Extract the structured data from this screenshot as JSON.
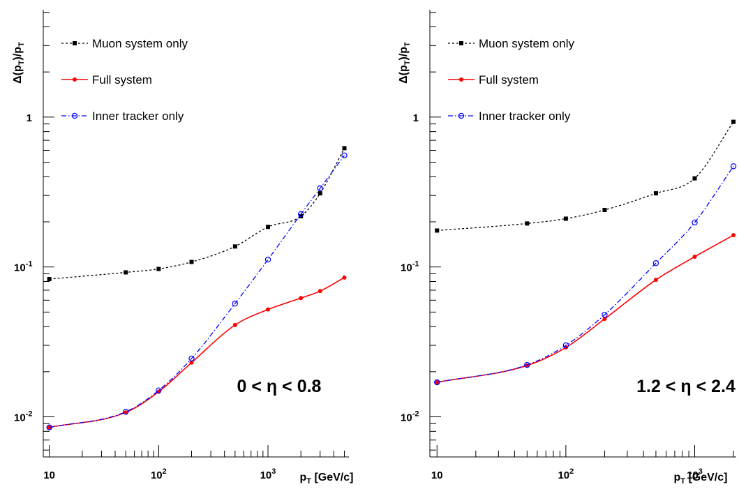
{
  "chart_data": [
    {
      "type": "line",
      "xlabel": "p_T [GeV/c]",
      "ylabel": "Δ(p_T)/p_T",
      "x_scale": "log",
      "y_scale": "log",
      "xlim": [
        8.8,
        5500
      ],
      "ylim": [
        0.0054,
        5.2
      ],
      "grid": false,
      "legend_position": "top-left",
      "annotation": "0 < η < 0.8",
      "x_tick_labels": [
        "10",
        "10^2",
        "10^3"
      ],
      "y_tick_labels": [
        "10^-2",
        "10^-1",
        "1"
      ],
      "series": [
        {
          "name": "Muon system only",
          "color": "#000000",
          "marker": "square",
          "dash": "dotted",
          "x": [
            10,
            50,
            100,
            200,
            500,
            1000,
            2000,
            3000,
            5000
          ],
          "y": [
            0.083,
            0.092,
            0.097,
            0.108,
            0.137,
            0.185,
            0.218,
            0.31,
            0.62
          ]
        },
        {
          "name": "Full system",
          "color": "#ff0000",
          "marker": "dot",
          "dash": "solid",
          "x": [
            10,
            50,
            100,
            200,
            500,
            1000,
            2000,
            3000,
            5000
          ],
          "y": [
            0.0085,
            0.0107,
            0.0147,
            0.023,
            0.041,
            0.052,
            0.062,
            0.069,
            0.085
          ]
        },
        {
          "name": "Inner tracker only",
          "color": "#0000ff",
          "marker": "open-circle",
          "dash": "dashdot",
          "x": [
            10,
            50,
            100,
            200,
            500,
            1000,
            2000,
            3000,
            5000
          ],
          "y": [
            0.0085,
            0.0108,
            0.015,
            0.0245,
            0.057,
            0.112,
            0.225,
            0.335,
            0.555
          ]
        }
      ]
    },
    {
      "type": "line",
      "xlabel": "p_T [GeV/c]",
      "ylabel": "Δ(p_T)/p_T",
      "x_scale": "log",
      "y_scale": "log",
      "xlim": [
        8.8,
        2100
      ],
      "ylim": [
        0.0054,
        5.2
      ],
      "grid": false,
      "legend_position": "top-left",
      "annotation": "1.2 < η < 2.4",
      "x_tick_labels": [
        "10",
        "10^2",
        "10^3"
      ],
      "y_tick_labels": [
        "10^-2",
        "10^-1",
        "1"
      ],
      "series": [
        {
          "name": "Muon system only",
          "color": "#000000",
          "marker": "square",
          "dash": "dotted",
          "x": [
            10,
            50,
            100,
            200,
            500,
            1000,
            2000
          ],
          "y": [
            0.175,
            0.195,
            0.21,
            0.24,
            0.31,
            0.39,
            0.93
          ]
        },
        {
          "name": "Full system",
          "color": "#ff0000",
          "marker": "dot",
          "dash": "solid",
          "x": [
            10,
            50,
            100,
            200,
            500,
            1000,
            2000
          ],
          "y": [
            0.017,
            0.022,
            0.029,
            0.045,
            0.082,
            0.117,
            0.163
          ]
        },
        {
          "name": "Inner tracker only",
          "color": "#0000ff",
          "marker": "open-circle",
          "dash": "dashdot",
          "x": [
            10,
            50,
            100,
            200,
            500,
            1000,
            2000
          ],
          "y": [
            0.017,
            0.0222,
            0.03,
            0.048,
            0.106,
            0.198,
            0.47
          ]
        }
      ]
    }
  ]
}
